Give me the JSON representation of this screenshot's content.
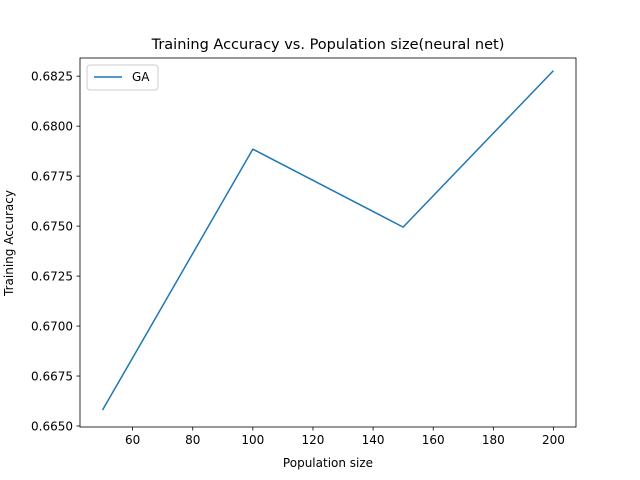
{
  "chart_data": {
    "type": "line",
    "title": "Training Accuracy vs.  Population size(neural net)",
    "xlabel": "Population size",
    "ylabel": "Training Accuracy",
    "x": [
      50,
      100,
      150,
      200
    ],
    "series": [
      {
        "name": "GA",
        "values": [
          0.6658,
          0.67885,
          0.67495,
          0.68278
        ],
        "color": "#1f77b4"
      }
    ],
    "xlim": [
      42.5,
      207.5
    ],
    "ylim": [
      0.66495,
      0.68341
    ],
    "xticks": [
      60,
      80,
      100,
      120,
      140,
      160,
      180,
      200
    ],
    "xtick_labels": [
      "60",
      "80",
      "100",
      "120",
      "140",
      "160",
      "180",
      "200"
    ],
    "yticks": [
      0.665,
      0.6675,
      0.67,
      0.6725,
      0.675,
      0.6775,
      0.68,
      0.6825
    ],
    "ytick_labels": [
      "0.6650",
      "0.6675",
      "0.6700",
      "0.6725",
      "0.6750",
      "0.6775",
      "0.6800",
      "0.6825"
    ],
    "grid": false,
    "legend_position": "upper-left"
  }
}
